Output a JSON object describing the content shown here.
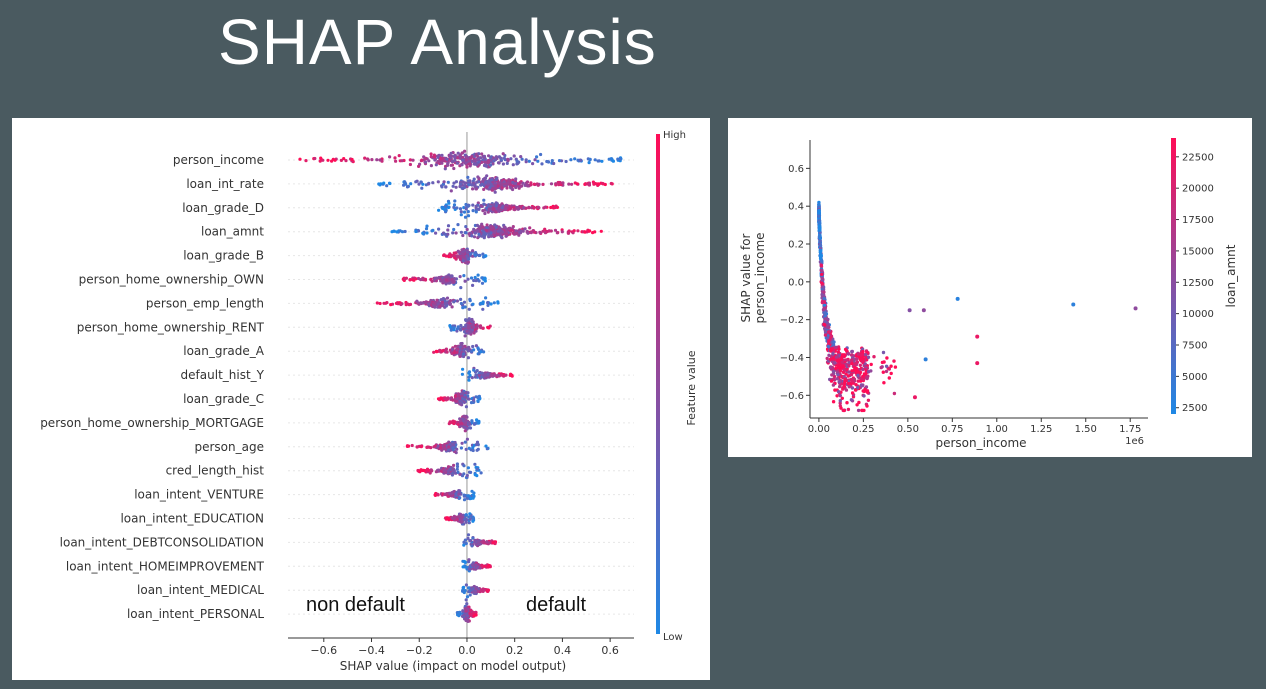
{
  "slide": {
    "title": "SHAP Analysis"
  },
  "annotations": {
    "left": "non default",
    "right": "default"
  },
  "colors": {
    "low": "#1e88e5",
    "high": "#ff0d57",
    "background": "#4a5a60"
  },
  "chart_data": [
    {
      "type": "scatter",
      "subtype": "beeswarm",
      "xlabel": "SHAP value (impact on model output)",
      "colorbar_label": "Feature value",
      "colorbar_high": "High",
      "colorbar_low": "Low",
      "xlim": [
        -0.75,
        0.7
      ],
      "xticks": [
        -0.6,
        -0.4,
        -0.2,
        0.0,
        0.2,
        0.4,
        0.6
      ],
      "xtick_labels": [
        "−0.6",
        "−0.4",
        "−0.2",
        "0.0",
        "0.2",
        "0.4",
        "0.6"
      ],
      "features": [
        {
          "name": "person_income",
          "min": -0.7,
          "max": 0.67,
          "high_side": "left"
        },
        {
          "name": "loan_int_rate",
          "min": -0.37,
          "max": 0.61,
          "high_side": "right"
        },
        {
          "name": "loan_grade_D",
          "min": -0.12,
          "max": 0.38,
          "high_side": "right"
        },
        {
          "name": "loan_amnt",
          "min": -0.32,
          "max": 0.57,
          "high_side": "right"
        },
        {
          "name": "loan_grade_B",
          "min": -0.1,
          "max": 0.08,
          "high_side": "left"
        },
        {
          "name": "person_home_ownership_OWN",
          "min": -0.27,
          "max": 0.09,
          "high_side": "left"
        },
        {
          "name": "person_emp_length",
          "min": -0.38,
          "max": 0.13,
          "high_side": "left"
        },
        {
          "name": "person_home_ownership_RENT",
          "min": -0.08,
          "max": 0.1,
          "high_side": "right"
        },
        {
          "name": "loan_grade_A",
          "min": -0.14,
          "max": 0.08,
          "high_side": "left"
        },
        {
          "name": "default_hist_Y",
          "min": -0.02,
          "max": 0.19,
          "high_side": "right"
        },
        {
          "name": "loan_grade_C",
          "min": -0.12,
          "max": 0.06,
          "high_side": "left"
        },
        {
          "name": "person_home_ownership_MORTGAGE",
          "min": -0.08,
          "max": 0.05,
          "high_side": "left"
        },
        {
          "name": "person_age",
          "min": -0.26,
          "max": 0.09,
          "high_side": "left"
        },
        {
          "name": "cred_length_hist",
          "min": -0.21,
          "max": 0.06,
          "high_side": "left"
        },
        {
          "name": "loan_intent_VENTURE",
          "min": -0.14,
          "max": 0.03,
          "high_side": "left"
        },
        {
          "name": "loan_intent_EDUCATION",
          "min": -0.09,
          "max": 0.03,
          "high_side": "left"
        },
        {
          "name": "loan_intent_DEBTCONSOLIDATION",
          "min": -0.02,
          "max": 0.12,
          "high_side": "right"
        },
        {
          "name": "loan_intent_HOMEIMPROVEMENT",
          "min": -0.02,
          "max": 0.1,
          "high_side": "right"
        },
        {
          "name": "loan_intent_MEDICAL",
          "min": -0.02,
          "max": 0.09,
          "high_side": "right"
        },
        {
          "name": "loan_intent_PERSONAL",
          "min": -0.04,
          "max": 0.04,
          "high_side": "right"
        }
      ]
    },
    {
      "type": "scatter",
      "subtype": "dependence",
      "xlabel": "person_income",
      "ylabel": "SHAP value for\nperson_income",
      "x_offset_label": "1e6",
      "colorbar_label": "loan_amnt",
      "xlim": [
        -0.05,
        1.85
      ],
      "ylim": [
        -0.72,
        0.75
      ],
      "xticks": [
        0.0,
        0.25,
        0.5,
        0.75,
        1.0,
        1.25,
        1.5,
        1.75
      ],
      "xtick_labels": [
        "0.00",
        "0.25",
        "0.50",
        "0.75",
        "1.00",
        "1.25",
        "1.50",
        "1.75"
      ],
      "yticks": [
        0.6,
        0.4,
        0.2,
        0.0,
        -0.2,
        -0.4,
        -0.6
      ],
      "ytick_labels": [
        "0.6",
        "0.4",
        "0.2",
        "0.0",
        "−0.2",
        "−0.4",
        "−0.6"
      ],
      "colorbar_ticks": [
        2500,
        5000,
        7500,
        10000,
        12500,
        15000,
        17500,
        20000,
        22500
      ],
      "colorbar_tick_labels": [
        "2500",
        "5000",
        "7500",
        "10000",
        "12500",
        "15000",
        "17500",
        "20000",
        "22500"
      ],
      "colorbar_range": [
        2000,
        24000
      ],
      "outliers": [
        {
          "x": 0.78,
          "y": -0.09,
          "loan_amnt": 3000
        },
        {
          "x": 1.43,
          "y": -0.12,
          "loan_amnt": 3500
        },
        {
          "x": 1.78,
          "y": -0.14,
          "loan_amnt": 13000
        },
        {
          "x": 0.89,
          "y": -0.29,
          "loan_amnt": 22000
        },
        {
          "x": 0.89,
          "y": -0.43,
          "loan_amnt": 22000
        },
        {
          "x": 0.6,
          "y": -0.41,
          "loan_amnt": 3500
        },
        {
          "x": 0.54,
          "y": -0.61,
          "loan_amnt": 22000
        },
        {
          "x": 0.59,
          "y": -0.15,
          "loan_amnt": 13000
        },
        {
          "x": 0.51,
          "y": -0.15,
          "loan_amnt": 12000
        }
      ]
    }
  ]
}
